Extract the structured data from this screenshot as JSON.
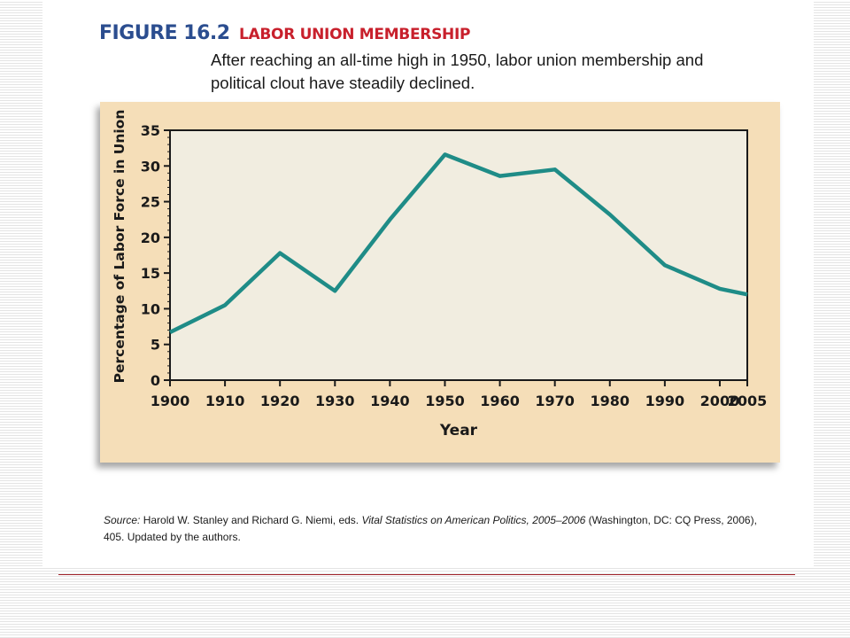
{
  "figure": {
    "number": "FIGURE 16.2",
    "title": "LABOR UNION MEMBERSHIP",
    "subtitle": "After reaching an all-time high in 1950, labor union membership and political clout have steadily declined."
  },
  "source": {
    "label": "Source:",
    "text_before": " Harold W. Stanley and Richard G. Niemi, eds. ",
    "book_title": "Vital Statistics on American Politics, 2005–2006",
    "text_after": " (Washington, DC: CQ Press, 2006), 405. Updated by the authors."
  },
  "colors": {
    "line": "#1f8c87",
    "plot_bg": "#f1ede0",
    "panel_bg": "#f5deb8",
    "title_blue": "#2b4d8f",
    "title_red": "#c8202c"
  },
  "chart_data": {
    "type": "line",
    "title": "LABOR UNION MEMBERSHIP",
    "xlabel": "Year",
    "ylabel": "Percentage of Labor Force in Union",
    "xlim": [
      1900,
      2005
    ],
    "ylim": [
      0,
      35
    ],
    "xticks": [
      1900,
      1910,
      1920,
      1930,
      1940,
      1950,
      1960,
      1970,
      1980,
      1990,
      2000,
      2005
    ],
    "yticks": [
      0,
      5,
      10,
      15,
      20,
      25,
      30,
      35
    ],
    "grid": false,
    "legend": "none",
    "series": [
      {
        "x": [
          1900,
          1910,
          1920,
          1930,
          1940,
          1950,
          1960,
          1970,
          1980,
          1990,
          2000,
          2005
        ],
        "y": [
          6.7,
          10.5,
          17.8,
          12.5,
          22.5,
          31.6,
          28.6,
          29.5,
          23.2,
          16.1,
          12.8,
          12.0
        ]
      }
    ]
  }
}
